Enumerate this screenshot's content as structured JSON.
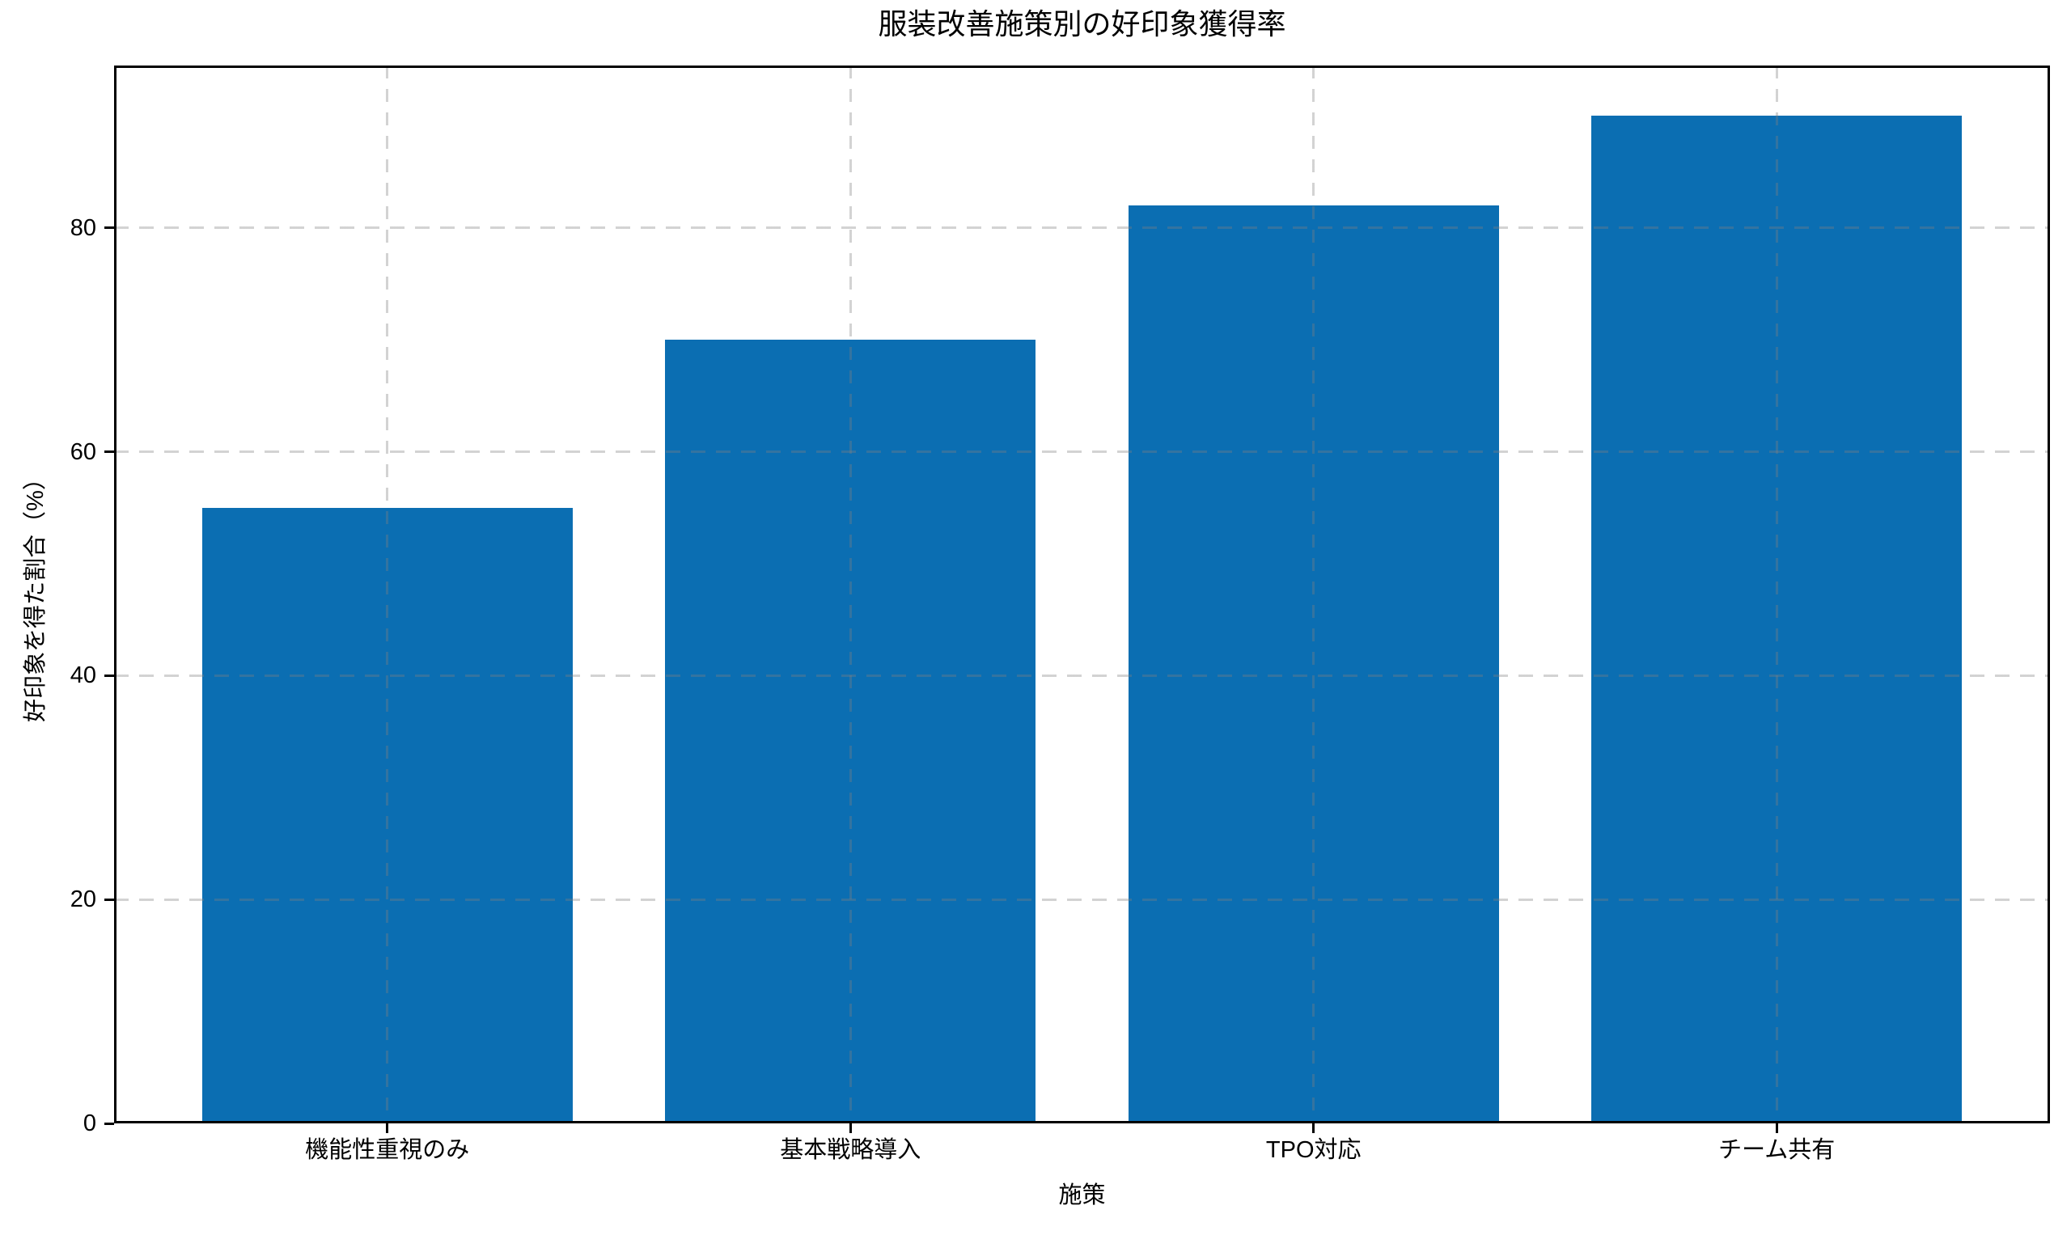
{
  "chart_data": {
    "type": "bar",
    "title": "服装改善施策別の好印象獲得率",
    "xlabel": "施策",
    "ylabel": "好印象を得た割合（%）",
    "categories": [
      "機能性重視のみ",
      "基本戦略導入",
      "TPO対応",
      "チーム共有"
    ],
    "values": [
      55,
      70,
      82,
      90
    ],
    "yticks": [
      0,
      20,
      40,
      60,
      80
    ],
    "ylim": [
      0,
      94.5
    ],
    "xlim": [
      -0.59,
      3.59
    ],
    "bar_width_fraction": 0.8,
    "bar_color": "#0b6eb2",
    "grid": {
      "style": "dashed",
      "axes": "both",
      "color": "#d2d2d2",
      "drawn_over_bars": true
    },
    "legend_position": "none",
    "data_labels": "none"
  }
}
